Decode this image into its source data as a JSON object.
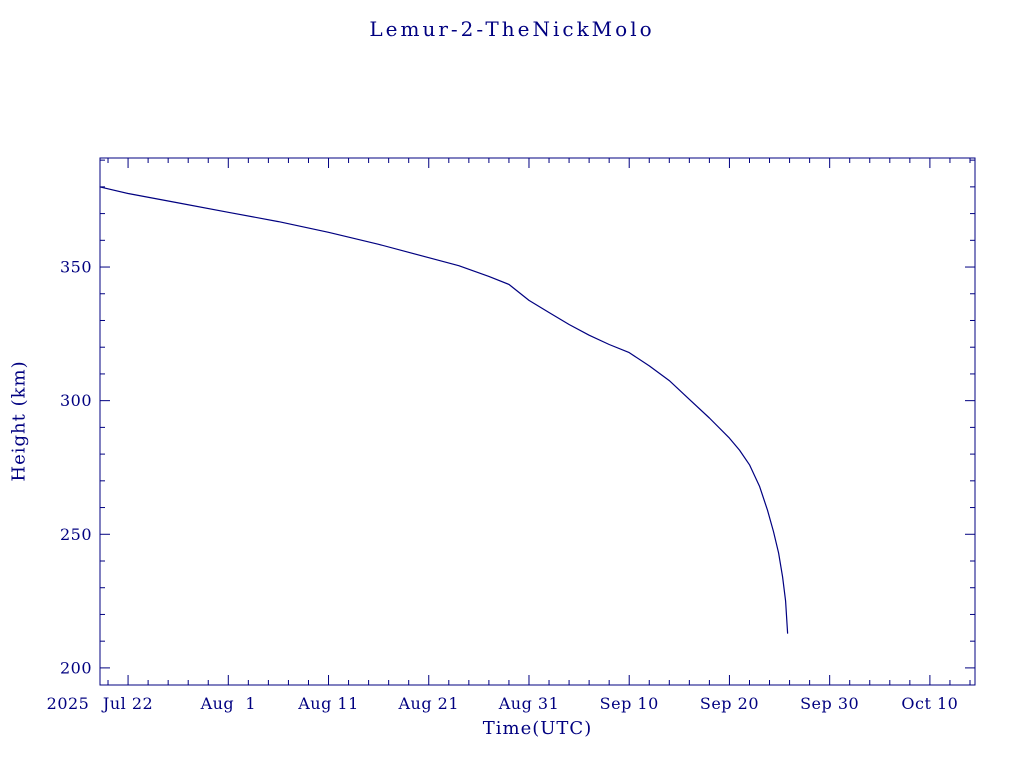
{
  "colors": {
    "accent": "#000080",
    "background": "#ffffff"
  },
  "chart_data": {
    "type": "line",
    "title": "Lemur-2-TheNickMolo",
    "xlabel": "Time(UTC)",
    "ylabel": "Height (km)",
    "year_label": "2025",
    "accent_color": "#000080",
    "grid": false,
    "legend": "none",
    "x_axis": {
      "unit": "days since 2025 Jul 22",
      "min": -2.8,
      "max": 84.5,
      "major_tick_days": [
        0,
        10,
        20,
        30,
        40,
        50,
        60,
        70,
        80
      ],
      "major_tick_labels": [
        "Jul 22",
        "Aug  1",
        "Aug 11",
        "Aug 21",
        "Aug 31",
        "Sep 10",
        "Sep 20",
        "Sep 30",
        "Oct 10"
      ],
      "minor_tick_step_days": 2
    },
    "y_axis": {
      "min": 193.6,
      "max": 390.8,
      "major_ticks": [
        200,
        250,
        300,
        350
      ],
      "major_tick_labels": [
        "200",
        "250",
        "300",
        "350"
      ],
      "minor_tick_step": 10
    },
    "series": [
      {
        "name": "Height (km)",
        "color": "#000080",
        "x_days": [
          -2.8,
          0,
          5,
          10,
          15,
          20,
          25,
          30,
          33,
          36,
          38,
          40,
          42,
          44,
          46,
          48,
          50,
          52,
          54,
          56,
          58,
          60,
          61,
          62,
          63,
          63.8,
          64.4,
          64.9,
          65.3,
          65.6,
          65.8
        ],
        "values": [
          380,
          377.5,
          374,
          370.5,
          367,
          363,
          358.5,
          353.5,
          350.5,
          346.5,
          343.5,
          337.5,
          333,
          328.5,
          324.5,
          321,
          318,
          313,
          307.5,
          300.5,
          293.5,
          286,
          281.5,
          276,
          268,
          259,
          251,
          243,
          234,
          225,
          213
        ]
      }
    ]
  }
}
